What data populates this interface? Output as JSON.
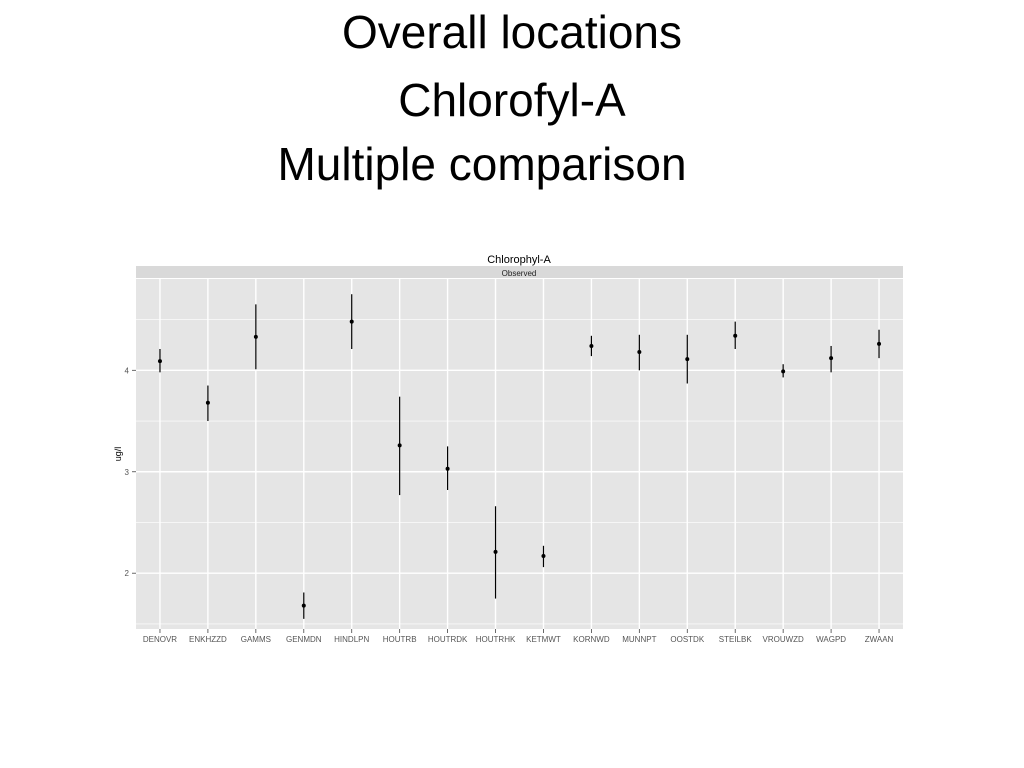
{
  "slide": {
    "title_lines": [
      "Overall locations",
      "Chlorofyl-A",
      "Multiple comparison"
    ]
  },
  "chart_data": {
    "type": "errorbar",
    "title": "Chlorophyl-A",
    "facet_label": "Observed",
    "xlabel": "",
    "ylabel": "ug/l",
    "ylim": [
      1.45,
      4.9
    ],
    "yticks": [
      2,
      3,
      4
    ],
    "grid": true,
    "categories": [
      "DENOVR",
      "ENKHZZD",
      "GAMMS",
      "GENMDN",
      "HINDLPN",
      "HOUTRB",
      "HOUTRDK",
      "HOUTRHK",
      "KETMWT",
      "KORNWD",
      "MUNNPT",
      "OOSTDK",
      "STEILBK",
      "VROUWZD",
      "WAGPD",
      "ZWAAN"
    ],
    "values": [
      4.09,
      3.68,
      4.33,
      1.68,
      4.48,
      3.26,
      3.03,
      2.21,
      2.17,
      4.24,
      4.18,
      4.11,
      4.34,
      3.99,
      4.12,
      4.26
    ],
    "lower": [
      3.98,
      3.5,
      4.01,
      1.55,
      4.21,
      2.77,
      2.82,
      1.75,
      2.06,
      4.14,
      4.0,
      3.87,
      4.21,
      3.93,
      3.98,
      4.12
    ],
    "upper": [
      4.21,
      3.85,
      4.65,
      1.81,
      4.75,
      3.74,
      3.25,
      2.66,
      2.27,
      4.34,
      4.35,
      4.35,
      4.48,
      4.06,
      4.24,
      4.4
    ],
    "colors": {
      "panel": "#e5e5e5",
      "strip": "#d9d9d9",
      "grid": "#ffffff",
      "mark": "#000000",
      "tick_text": "#555555"
    }
  }
}
